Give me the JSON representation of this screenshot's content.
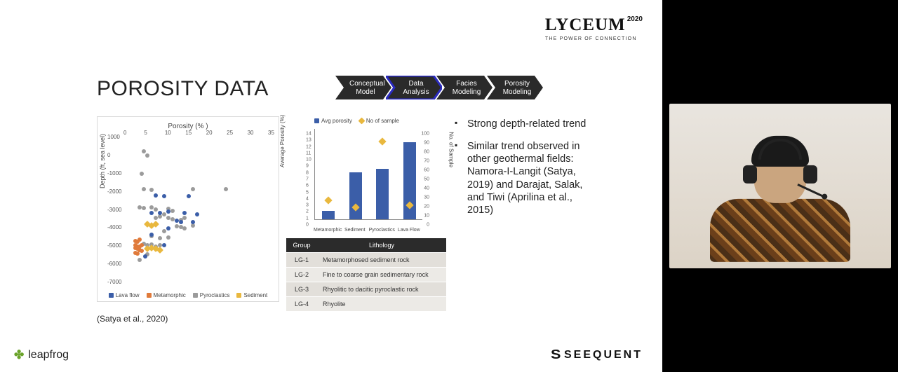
{
  "logo": {
    "main": "LYCEUM",
    "year": "2020",
    "subtitle": "THE POWER OF CONNECTION"
  },
  "title": "POROSITY DATA",
  "workflow": {
    "steps": [
      {
        "line1": "Conceptual",
        "line2": "Model"
      },
      {
        "line1": "Data",
        "line2": "Analysis"
      },
      {
        "line1": "Facies",
        "line2": "Modeling"
      },
      {
        "line1": "Porosity",
        "line2": "Modeling"
      }
    ],
    "active_index": 1,
    "bg": "#2a2a2a",
    "active_outline": "#2a2abf"
  },
  "bullets": [
    "Strong depth-related trend",
    "Similar trend observed in other geothermal fields: Namora-I-Langit (Satya, 2019) and Darajat, Salak, and Tiwi (Aprilina et al., 2015)"
  ],
  "citation": "(Satya et al., 2020)",
  "footer": {
    "left_icon": "✤",
    "left_text": "leapfrog",
    "right_icon": "S",
    "right_text": "SEEQUENT"
  },
  "scatter": {
    "title": "Porosity (% )",
    "ylabel": "Depth (ft, sea level)",
    "xlim": [
      0,
      35
    ],
    "xtick_step": 5,
    "ylim": [
      -7000,
      1000
    ],
    "ytick_step": 1000,
    "series_colors": {
      "Lava flow": "#3b5ea8",
      "Metamorphic": "#e07a3a",
      "Pyroclastics": "#9b9b9b",
      "Sediment": "#e9b83e"
    },
    "legend": [
      "Lava flow",
      "Metamorphic",
      "Pyroclastics",
      "Sediment"
    ],
    "points": {
      "Pyroclastics": [
        [
          4,
          200
        ],
        [
          5,
          -60
        ],
        [
          3.5,
          -1050
        ],
        [
          4,
          -1900
        ],
        [
          6,
          -1950
        ],
        [
          16,
          -1880
        ],
        [
          24,
          -1900
        ],
        [
          3,
          -2900
        ],
        [
          4,
          -2950
        ],
        [
          6,
          -2900
        ],
        [
          7,
          -3000
        ],
        [
          10,
          -2990
        ],
        [
          11,
          -3100
        ],
        [
          7,
          -3500
        ],
        [
          8,
          -3400
        ],
        [
          9,
          -3300
        ],
        [
          10,
          -3500
        ],
        [
          11,
          -3550
        ],
        [
          13,
          -3600
        ],
        [
          14,
          -3500
        ],
        [
          12,
          -3950
        ],
        [
          13,
          -4000
        ],
        [
          14,
          -4050
        ],
        [
          16,
          -3900
        ],
        [
          9,
          -4200
        ],
        [
          6,
          -4500
        ],
        [
          8,
          -4600
        ],
        [
          10,
          -4550
        ],
        [
          4,
          -4900
        ],
        [
          5,
          -5000
        ],
        [
          6,
          -4950
        ],
        [
          7,
          -5050
        ],
        [
          8,
          -5000
        ],
        [
          5,
          -5500
        ],
        [
          3,
          -5800
        ]
      ],
      "Lava flow": [
        [
          7,
          -2250
        ],
        [
          9,
          -2300
        ],
        [
          15,
          -2300
        ],
        [
          6,
          -3200
        ],
        [
          8,
          -3200
        ],
        [
          10,
          -3150
        ],
        [
          14,
          -3200
        ],
        [
          17,
          -3300
        ],
        [
          12,
          -3650
        ],
        [
          13,
          -3700
        ],
        [
          16,
          -3700
        ],
        [
          10,
          -4070
        ],
        [
          6,
          -4400
        ],
        [
          9,
          -5000
        ],
        [
          4.5,
          -5600
        ]
      ],
      "Metamorphic": [
        [
          2,
          -4750
        ],
        [
          2.5,
          -4800
        ],
        [
          3,
          -4700
        ],
        [
          2,
          -5000
        ],
        [
          2.5,
          -5050
        ],
        [
          3,
          -5050
        ],
        [
          3.5,
          -5000
        ],
        [
          2,
          -5150
        ],
        [
          2.5,
          -5200
        ],
        [
          3,
          -5250
        ],
        [
          3.5,
          -5300
        ],
        [
          2,
          -5400
        ],
        [
          2.5,
          -5450
        ]
      ],
      "Sediment": [
        [
          5,
          -3850
        ],
        [
          6,
          -3900
        ],
        [
          7,
          -3850
        ],
        [
          5,
          -5200
        ],
        [
          6,
          -5150
        ],
        [
          7,
          -5200
        ],
        [
          8,
          -5250
        ]
      ]
    }
  },
  "barchart": {
    "legend": [
      {
        "label": "Avg porosity",
        "type": "bar",
        "color": "#3b5ea8"
      },
      {
        "label": "No of sample",
        "type": "diamond",
        "color": "#e9b83e"
      }
    ],
    "ylabel": "Average Porosity (%)",
    "y2label": "No. of Sample",
    "categories": [
      "Metamorphic",
      "Sediment",
      "Pyroclastics",
      "Lava Flow"
    ],
    "bar_values": [
      1.3,
      7.2,
      7.8,
      11.8
    ],
    "diamond_values": [
      18,
      10,
      82,
      12
    ],
    "ylim": [
      0,
      14
    ],
    "ytick_step": 1,
    "y2lim": [
      0,
      100
    ],
    "y2tick_step": 10,
    "bar_color": "#3b5ea8",
    "diamond_color": "#e9b83e"
  },
  "table": {
    "headers": [
      "Group",
      "Lithology"
    ],
    "rows": [
      [
        "LG-1",
        "Metamorphosed sediment rock"
      ],
      [
        "LG-2",
        "Fine to coarse grain sedimentary rock"
      ],
      [
        "LG-3",
        "Rhyolitic to dacitic pyroclastic rock"
      ],
      [
        "LG-4",
        "Rhyolite"
      ]
    ],
    "header_bg": "#2b2b2b",
    "row_bg": "#eceae6"
  }
}
